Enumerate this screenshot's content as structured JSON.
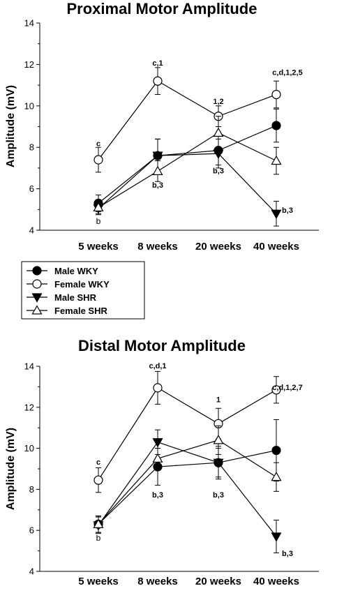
{
  "legend": [
    {
      "name": "Male WKY",
      "marker": "circle",
      "fill": "#000000"
    },
    {
      "name": "Female WKY",
      "marker": "circle",
      "fill": "#ffffff"
    },
    {
      "name": "Male SHR",
      "marker": "triangle-down",
      "fill": "#000000"
    },
    {
      "name": "Female SHR",
      "marker": "triangle-up",
      "fill": "#ffffff"
    }
  ],
  "chart_data": [
    {
      "type": "line",
      "title": "Proximal Motor Amplitude",
      "xlabel": "",
      "ylabel": "Amplitude (mV)",
      "ylim": [
        4,
        14
      ],
      "yticks": [
        4,
        6,
        8,
        10,
        12,
        14
      ],
      "categories": [
        "5 weeks",
        "8 weeks",
        "20 weeks",
        "40 weeks"
      ],
      "grid": false,
      "series": [
        {
          "name": "Male WKY",
          "values": [
            5.3,
            7.6,
            7.85,
            9.05
          ],
          "err": [
            0.4,
            0.8,
            0.7,
            0.8
          ]
        },
        {
          "name": "Female WKY",
          "values": [
            7.4,
            11.2,
            9.5,
            10.55
          ],
          "err": [
            0.6,
            0.65,
            0.5,
            0.65
          ]
        },
        {
          "name": "Male SHR",
          "values": [
            5.05,
            7.6,
            7.7,
            4.8
          ],
          "err": [
            0.3,
            0.8,
            0.7,
            0.6
          ]
        },
        {
          "name": "Female SHR",
          "values": [
            5.1,
            6.85,
            8.7,
            7.35
          ],
          "err": [
            0.3,
            0.5,
            0.8,
            0.65
          ]
        }
      ],
      "annotations": [
        {
          "text": "c",
          "x": "5 weeks",
          "y": 8.05,
          "bold": true
        },
        {
          "text": "b",
          "x": "5 weeks",
          "y": 4.3,
          "bold": false
        },
        {
          "text": "c,1",
          "x": "8 weeks",
          "y": 11.95,
          "bold": true
        },
        {
          "text": "b,3",
          "x": "8 weeks",
          "y": 6.05,
          "bold": true
        },
        {
          "text": "1,2",
          "x": "20 weeks",
          "y": 10.1,
          "bold": true
        },
        {
          "text": "b,3",
          "x": "20 weeks",
          "y": 6.75,
          "bold": true
        },
        {
          "text": "c,d,1,2,5",
          "x": "40 weeks",
          "y": 11.5,
          "bold": true
        },
        {
          "text": "b,3",
          "x": "40 weeks",
          "y": 4.85,
          "bold": true
        }
      ]
    },
    {
      "type": "line",
      "title": "Distal Motor Amplitude",
      "xlabel": "",
      "ylabel": "Amplitude (mV)",
      "ylim": [
        4,
        14
      ],
      "yticks": [
        4,
        6,
        8,
        10,
        12,
        14
      ],
      "categories": [
        "5 weeks",
        "8 weeks",
        "20 weeks",
        "40 weeks"
      ],
      "grid": false,
      "series": [
        {
          "name": "Male WKY",
          "values": [
            6.3,
            9.1,
            9.3,
            9.9
          ],
          "err": [
            0.4,
            0.9,
            0.8,
            1.5
          ]
        },
        {
          "name": "Female WKY",
          "values": [
            8.45,
            12.95,
            11.2,
            12.85
          ],
          "err": [
            0.6,
            0.8,
            0.75,
            0.65
          ]
        },
        {
          "name": "Male SHR",
          "values": [
            6.25,
            10.3,
            9.3,
            5.7
          ],
          "err": [
            0.4,
            0.6,
            0.7,
            0.8
          ]
        },
        {
          "name": "Female SHR",
          "values": [
            6.3,
            9.5,
            10.4,
            8.6
          ],
          "err": [
            0.4,
            0.5,
            0.7,
            0.7
          ]
        }
      ],
      "annotations": [
        {
          "text": "c",
          "x": "5 weeks",
          "y": 9.2,
          "bold": true
        },
        {
          "text": "b",
          "x": "5 weeks",
          "y": 5.5,
          "bold": false
        },
        {
          "text": "c,d,1",
          "x": "8 weeks",
          "y": 13.9,
          "bold": true
        },
        {
          "text": "b,3",
          "x": "8 weeks",
          "y": 7.6,
          "bold": true
        },
        {
          "text": "1",
          "x": "20 weeks",
          "y": 12.25,
          "bold": true
        },
        {
          "text": "b,3",
          "x": "20 weeks",
          "y": 7.6,
          "bold": true
        },
        {
          "text": "c,d,1,2,7",
          "x": "40 weeks",
          "y": 12.85,
          "bold": true
        },
        {
          "text": "b,3",
          "x": "40 weeks",
          "y": 4.75,
          "bold": true
        }
      ]
    }
  ]
}
